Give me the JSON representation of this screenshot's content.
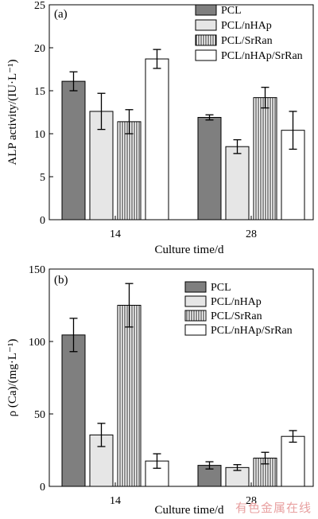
{
  "colors": {
    "PCL": "#7f7f7f",
    "PCL/nHAp": "#e6e6e6",
    "PCL/SrRan": "hatch-vertical",
    "PCL/nHAp/SrRan": "#ffffff"
  },
  "watermark": "有色金属在线",
  "chart_data": [
    {
      "type": "bar",
      "panel": "(a)",
      "xlabel": "Culture time/d",
      "ylabel": "ALP activity/(IU·L⁻¹)",
      "ylim": [
        0,
        25
      ],
      "yticks": [
        0,
        5,
        10,
        15,
        20,
        25
      ],
      "categories": [
        "14",
        "28"
      ],
      "legend_position": "top-right",
      "series": [
        {
          "name": "PCL",
          "values": [
            16.1,
            11.9
          ],
          "errors": [
            1.1,
            0.3
          ]
        },
        {
          "name": "PCL/nHAp",
          "values": [
            12.6,
            8.5
          ],
          "errors": [
            2.1,
            0.8
          ]
        },
        {
          "name": "PCL/SrRan",
          "values": [
            11.4,
            14.2
          ],
          "errors": [
            1.4,
            1.2
          ]
        },
        {
          "name": "PCL/nHAp/SrRan",
          "values": [
            18.7,
            10.4
          ],
          "errors": [
            1.1,
            2.2
          ]
        }
      ]
    },
    {
      "type": "bar",
      "panel": "(b)",
      "xlabel": "Culture time/d",
      "ylabel": "ρ (Ca)/(mg·L⁻¹)",
      "ylim": [
        0,
        150
      ],
      "yticks": [
        0,
        50,
        100,
        150
      ],
      "categories": [
        "14",
        "28"
      ],
      "legend_position": "top-right",
      "series": [
        {
          "name": "PCL",
          "values": [
            104.5,
            14.5
          ],
          "errors": [
            11.5,
            2.5
          ]
        },
        {
          "name": "PCL/nHAp",
          "values": [
            35.5,
            13
          ],
          "errors": [
            8,
            2
          ]
        },
        {
          "name": "PCL/SrRan",
          "values": [
            125,
            19.5
          ],
          "errors": [
            15,
            4
          ]
        },
        {
          "name": "PCL/nHAp/SrRan",
          "values": [
            17.5,
            34.5
          ],
          "errors": [
            5,
            4
          ]
        }
      ]
    }
  ]
}
